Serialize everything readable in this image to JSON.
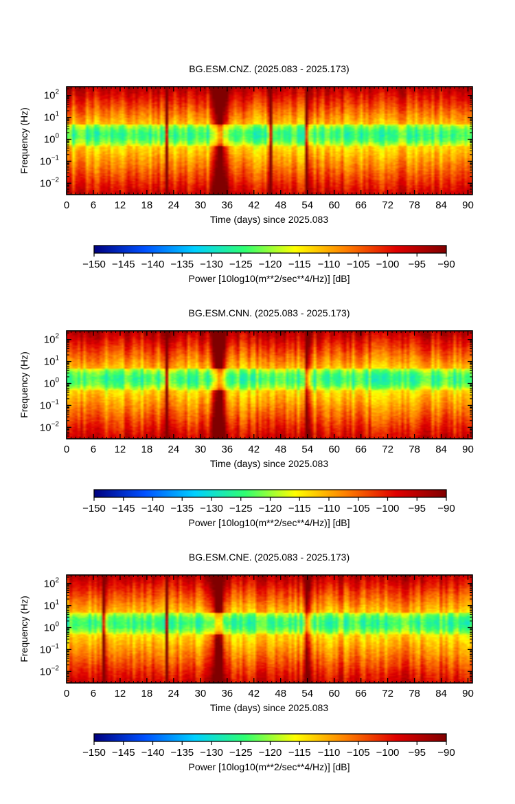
{
  "chart_data": [
    {
      "type": "heatmap",
      "title": "BG.ESM.CNZ. (2025.083 - 2025.173)",
      "xlabel": "Time (days) since 2025.083",
      "ylabel": "Frequency (Hz)",
      "xlim": [
        0,
        91
      ],
      "x_ticks": [
        0,
        6,
        12,
        18,
        24,
        30,
        36,
        42,
        48,
        54,
        60,
        66,
        72,
        78,
        84,
        90
      ],
      "y_scale": "log",
      "ylim": [
        0.003,
        250
      ],
      "y_ticks": [
        {
          "base": "10",
          "exp": "−2",
          "value": 0.01
        },
        {
          "base": "10",
          "exp": "−1",
          "value": 0.1
        },
        {
          "base": "10",
          "exp": "0",
          "value": 1
        },
        {
          "base": "10",
          "exp": "1",
          "value": 10
        },
        {
          "base": "10",
          "exp": "2",
          "value": 100
        }
      ],
      "colorbar": {
        "label": "Power [10log10(m**2/sec**4/Hz)] [dB]",
        "range": [
          -150,
          -90
        ],
        "ticks": [
          "−150",
          "−145",
          "−140",
          "−135",
          "−130",
          "−125",
          "−120",
          "−115",
          "−110",
          "−105",
          "−100",
          "−95",
          "−90"
        ]
      },
      "features": {
        "event_days": [
          22.5,
          45.8,
          54
        ],
        "quiet_band_hz": [
          0.5,
          5
        ],
        "broad_event_day": 34.5
      }
    },
    {
      "type": "heatmap",
      "title": "BG.ESM.CNN. (2025.083 - 2025.173)",
      "xlabel": "Time (days) since 2025.083",
      "ylabel": "Frequency (Hz)",
      "xlim": [
        0,
        91
      ],
      "x_ticks": [
        0,
        6,
        12,
        18,
        24,
        30,
        36,
        42,
        48,
        54,
        60,
        66,
        72,
        78,
        84,
        90
      ],
      "y_scale": "log",
      "ylim": [
        0.003,
        250
      ],
      "y_ticks": [
        {
          "base": "10",
          "exp": "−2",
          "value": 0.01
        },
        {
          "base": "10",
          "exp": "−1",
          "value": 0.1
        },
        {
          "base": "10",
          "exp": "0",
          "value": 1
        },
        {
          "base": "10",
          "exp": "1",
          "value": 10
        },
        {
          "base": "10",
          "exp": "2",
          "value": 100
        }
      ],
      "colorbar": {
        "label": "Power [10log10(m**2/sec**4/Hz)] [dB]",
        "range": [
          -150,
          -90
        ],
        "ticks": [
          "−150",
          "−145",
          "−140",
          "−135",
          "−130",
          "−125",
          "−120",
          "−115",
          "−110",
          "−105",
          "−100",
          "−95",
          "−90"
        ]
      },
      "features": {
        "event_days": [
          22.5,
          54
        ],
        "quiet_band_hz": [
          0.5,
          5
        ],
        "broad_event_day": 34
      }
    },
    {
      "type": "heatmap",
      "title": "BG.ESM.CNE. (2025.083 - 2025.173)",
      "xlabel": "Time (days) since 2025.083",
      "ylabel": "Frequency (Hz)",
      "xlim": [
        0,
        91
      ],
      "x_ticks": [
        0,
        6,
        12,
        18,
        24,
        30,
        36,
        42,
        48,
        54,
        60,
        66,
        72,
        78,
        84,
        90
      ],
      "y_scale": "log",
      "ylim": [
        0.003,
        250
      ],
      "y_ticks": [
        {
          "base": "10",
          "exp": "−2",
          "value": 0.01
        },
        {
          "base": "10",
          "exp": "−1",
          "value": 0.1
        },
        {
          "base": "10",
          "exp": "0",
          "value": 1
        },
        {
          "base": "10",
          "exp": "1",
          "value": 10
        },
        {
          "base": "10",
          "exp": "2",
          "value": 100
        }
      ],
      "colorbar": {
        "label": "Power [10log10(m**2/sec**4/Hz)] [dB]",
        "range": [
          -150,
          -90
        ],
        "ticks": [
          "−150",
          "−145",
          "−140",
          "−135",
          "−130",
          "−125",
          "−120",
          "−115",
          "−110",
          "−105",
          "−100",
          "−95",
          "−90"
        ]
      },
      "features": {
        "event_days": [
          8.5,
          22.5,
          54
        ],
        "quiet_band_hz": [
          0.5,
          5
        ],
        "broad_event_day": 34
      }
    }
  ],
  "colors": {
    "colormap": [
      "#00007f",
      "#0050ff",
      "#00d0ff",
      "#30ff70",
      "#ffff00",
      "#ff8000",
      "#e00000",
      "#800000"
    ],
    "axis": "#000000"
  }
}
